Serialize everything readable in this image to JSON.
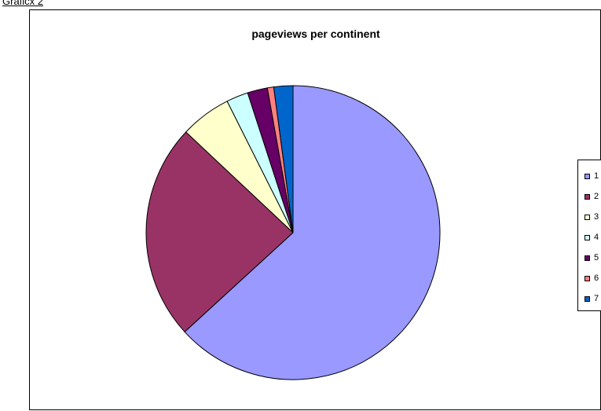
{
  "page": {
    "caption": "Graficx 2"
  },
  "chart_data": {
    "type": "pie",
    "title": "pageviews per continent",
    "legend": "right",
    "slices": [
      {
        "label": "1",
        "value": 63.2,
        "color": "#9999ff"
      },
      {
        "label": "2",
        "value": 23.8,
        "color": "#993366"
      },
      {
        "label": "3",
        "value": 5.6,
        "color": "#ffffcc"
      },
      {
        "label": "4",
        "value": 2.4,
        "color": "#ccffff"
      },
      {
        "label": "5",
        "value": 2.2,
        "color": "#660066"
      },
      {
        "label": "6",
        "value": 0.7,
        "color": "#ff8080"
      },
      {
        "label": "7",
        "value": 2.1,
        "color": "#0066cc"
      }
    ]
  }
}
